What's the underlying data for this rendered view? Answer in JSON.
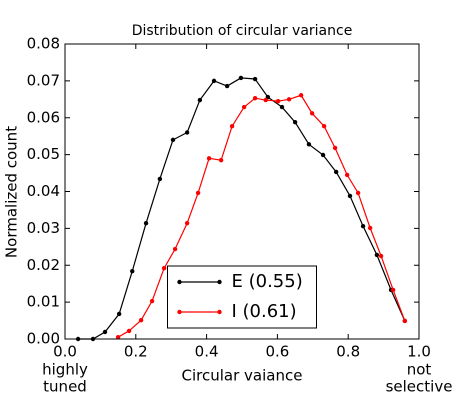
{
  "chart_data": {
    "type": "line",
    "title": "Distribution of circular variance",
    "x_label": "Circular vaiance",
    "y_label": "Normalized count",
    "annotations": [
      {
        "lines": [
          "highly",
          "tuned"
        ]
      },
      {
        "lines": [
          "not",
          "selective"
        ]
      }
    ],
    "xlim": [
      0,
      1
    ],
    "ylim": [
      0,
      0.08
    ],
    "xticks": [
      {
        "value": 0,
        "label": "0.0"
      },
      0.2,
      0.4,
      0.6,
      0.8,
      {
        "value": 1,
        "label": "1.0"
      }
    ],
    "yticks": [
      {
        "value": 0,
        "label": "0.00"
      },
      0.01,
      0.02,
      0.03,
      0.04,
      0.05,
      0.06,
      0.07,
      0.08
    ],
    "legend": "lower center",
    "series": [
      {
        "name": "E (0.55)",
        "color": "#000000",
        "x": [
          0.037,
          0.079,
          0.113,
          0.153,
          0.19,
          0.229,
          0.268,
          0.305,
          0.345,
          0.381,
          0.421,
          0.458,
          0.497,
          0.537,
          0.573,
          0.613,
          0.65,
          0.689,
          0.729,
          0.766,
          0.805,
          0.842,
          0.881,
          0.921,
          0.96
        ],
        "values": [
          0,
          0,
          0.0019,
          0.0068,
          0.0184,
          0.0314,
          0.0434,
          0.054,
          0.056,
          0.0648,
          0.07,
          0.0686,
          0.0708,
          0.0705,
          0.0656,
          0.0629,
          0.0588,
          0.0528,
          0.0499,
          0.0453,
          0.0388,
          0.0306,
          0.0228,
          0.0133,
          0.0049
        ]
      },
      {
        "name": "I (0.61)",
        "color": "#ff0000",
        "x": [
          0.15,
          0.181,
          0.215,
          0.246,
          0.28,
          0.311,
          0.345,
          0.376,
          0.407,
          0.441,
          0.472,
          0.506,
          0.537,
          0.567,
          0.602,
          0.633,
          0.667,
          0.698,
          0.732,
          0.763,
          0.797,
          0.828,
          0.862,
          0.893,
          0.927,
          0.96
        ],
        "values": [
          0.0005,
          0.0022,
          0.0051,
          0.0103,
          0.0192,
          0.0244,
          0.0314,
          0.0396,
          0.049,
          0.0485,
          0.0577,
          0.0629,
          0.0653,
          0.0648,
          0.0645,
          0.065,
          0.0661,
          0.0612,
          0.0577,
          0.0518,
          0.0445,
          0.0396,
          0.0301,
          0.0225,
          0.0133,
          0.0049
        ]
      }
    ]
  }
}
